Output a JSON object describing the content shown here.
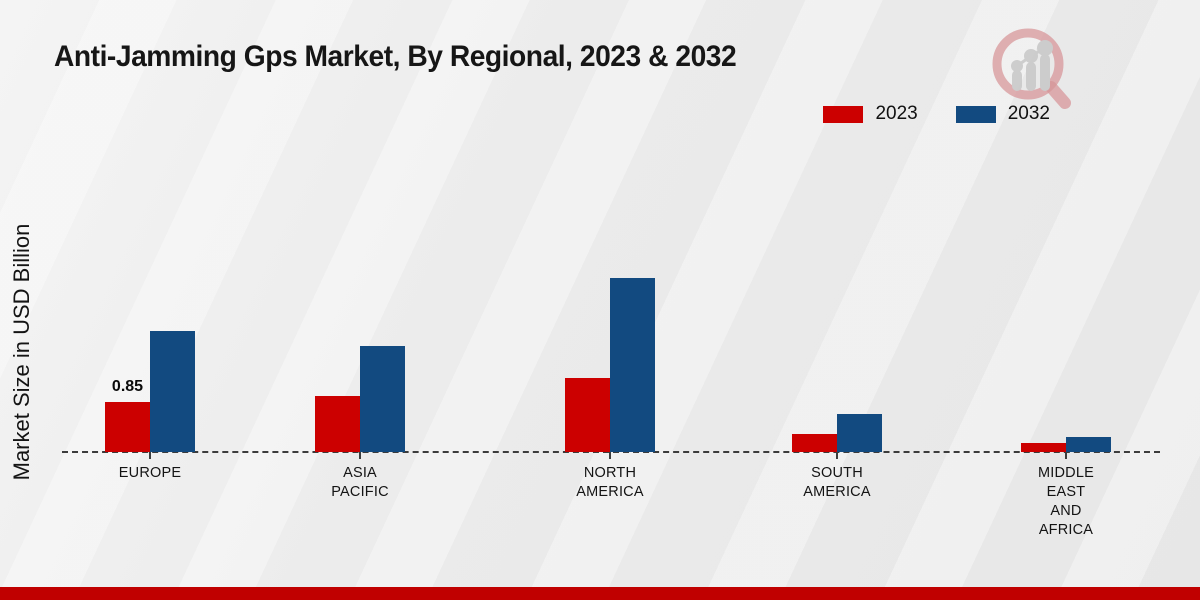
{
  "title": "Anti-Jamming Gps Market, By Regional, 2023 & 2032",
  "y_axis_label": "Market Size in USD Billion",
  "legend": [
    {
      "label": "2023",
      "color": "#cc0000"
    },
    {
      "label": "2032",
      "color": "#124a80"
    }
  ],
  "chart_data": {
    "type": "bar",
    "title": "Anti-Jamming Gps Market, By Regional, 2023 & 2032",
    "xlabel": "",
    "ylabel": "Market Size in USD Billion",
    "categories": [
      "EUROPE",
      "ASIA PACIFIC",
      "NORTH AMERICA",
      "SOUTH AMERICA",
      "MIDDLE EAST AND AFRICA"
    ],
    "category_label_lines": [
      [
        "EUROPE"
      ],
      [
        "ASIA",
        "PACIFIC"
      ],
      [
        "NORTH",
        "AMERICA"
      ],
      [
        "SOUTH",
        "AMERICA"
      ],
      [
        "MIDDLE",
        "EAST",
        "AND",
        "AFRICA"
      ]
    ],
    "series": [
      {
        "name": "2023",
        "color": "#cc0000",
        "values": [
          0.85,
          0.95,
          1.25,
          0.3,
          0.15
        ]
      },
      {
        "name": "2032",
        "color": "#124a80",
        "values": [
          2.05,
          1.8,
          2.95,
          0.65,
          0.25
        ]
      }
    ],
    "annotations": [
      {
        "category_index": 0,
        "series_index": 0,
        "text": "0.85"
      }
    ],
    "ylim": [
      0,
      3.3
    ],
    "grid": false,
    "legend_position": "top-right",
    "baseline_style": "dashed",
    "unit": "USD Billion"
  },
  "footer": {
    "band_color": "#c00000"
  },
  "logo_colors": {
    "ring": "#d4888c",
    "bars": "#c7c7c7"
  }
}
